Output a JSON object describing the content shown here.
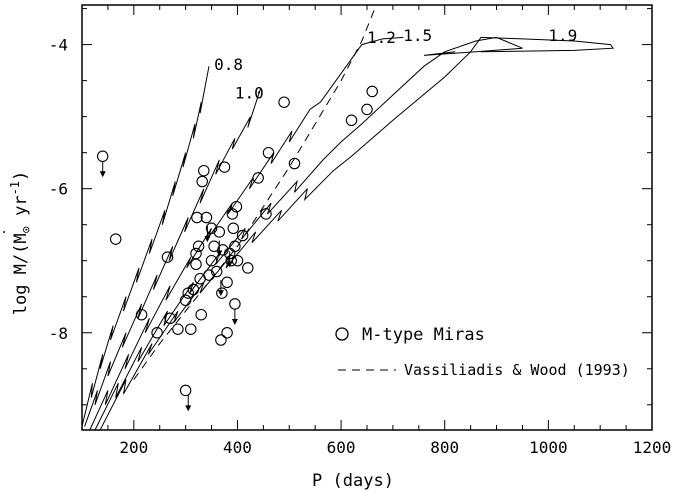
{
  "chart_data": {
    "type": "line",
    "xlabel": "P (days)",
    "ylabel_prefix": "log ",
    "ylabel_mdot": "M",
    "ylabel_mdot_dot": "˙",
    "ylabel_rest": "/(M",
    "ylabel_sun": "⊙",
    "ylabel_end": " yr",
    "ylabel_sup": "-1",
    "ylabel_close": ")",
    "xlim": [
      100,
      1200
    ],
    "ylim": [
      -9.35,
      -3.45
    ],
    "xticks": [
      "200",
      "400",
      "600",
      "800",
      "1000",
      "1200"
    ],
    "yticks": [
      "-4",
      "-6",
      "-8"
    ],
    "xtick_values": [
      200,
      400,
      600,
      800,
      1000,
      1200
    ],
    "ytick_values": [
      -4,
      -6,
      -8
    ],
    "grid": false,
    "legend": {
      "position": "lower-right",
      "entries": [
        {
          "label": "M-type Miras",
          "marker": "circle"
        },
        {
          "label": "Vassiliadis & Wood (1993)",
          "style": "dashed"
        }
      ]
    },
    "series": [
      {
        "name": "0.8",
        "x": [
          100,
          120,
          118,
          140,
          135,
          160,
          155,
          185,
          180,
          210,
          205,
          235,
          230,
          260,
          255,
          280,
          275,
          300,
          295,
          318,
          315,
          330,
          328,
          345
        ],
        "y": [
          -9.3,
          -8.7,
          -8.9,
          -8.3,
          -8.5,
          -7.9,
          -8.1,
          -7.5,
          -7.7,
          -7.1,
          -7.3,
          -6.7,
          -6.9,
          -6.3,
          -6.5,
          -5.9,
          -6.1,
          -5.5,
          -5.7,
          -5.1,
          -5.3,
          -4.8,
          -4.95,
          -4.3
        ]
      },
      {
        "name": "1.0",
        "x": [
          105,
          130,
          125,
          155,
          150,
          185,
          178,
          215,
          208,
          245,
          238,
          275,
          268,
          305,
          298,
          335,
          328,
          365,
          358,
          395,
          390,
          425,
          420,
          445
        ],
        "y": [
          -9.3,
          -8.8,
          -9.0,
          -8.4,
          -8.6,
          -8.0,
          -8.2,
          -7.6,
          -7.8,
          -7.2,
          -7.4,
          -6.8,
          -7.0,
          -6.4,
          -6.6,
          -6.0,
          -6.2,
          -5.6,
          -5.8,
          -5.3,
          -5.45,
          -5.0,
          -5.15,
          -4.6
        ]
      },
      {
        "name": "1.2",
        "x": [
          115,
          150,
          145,
          190,
          183,
          230,
          222,
          270,
          262,
          310,
          302,
          350,
          342,
          390,
          382,
          430,
          423,
          470,
          465,
          505,
          500,
          540,
          560,
          600,
          640,
          680,
          720
        ],
        "y": [
          -9.35,
          -8.8,
          -9.0,
          -8.3,
          -8.5,
          -7.8,
          -8.0,
          -7.35,
          -7.55,
          -6.95,
          -7.1,
          -6.55,
          -6.7,
          -6.2,
          -6.35,
          -5.85,
          -6.0,
          -5.5,
          -5.65,
          -5.2,
          -5.35,
          -4.9,
          -4.8,
          -4.4,
          -4.0,
          -3.92,
          -3.9
        ]
      },
      {
        "name": "1.5",
        "x": [
          125,
          170,
          165,
          215,
          208,
          265,
          258,
          315,
          308,
          365,
          358,
          415,
          408,
          465,
          458,
          515,
          510,
          565,
          600,
          640,
          700,
          760,
          800,
          860,
          900,
          950,
          860,
          760,
          820
        ],
        "y": [
          -9.35,
          -8.7,
          -8.9,
          -8.2,
          -8.4,
          -7.7,
          -7.9,
          -7.3,
          -7.45,
          -6.9,
          -7.05,
          -6.55,
          -6.7,
          -6.2,
          -6.35,
          -5.9,
          -6.05,
          -5.6,
          -5.35,
          -5.1,
          -4.7,
          -4.3,
          -4.1,
          -3.95,
          -3.9,
          -4.05,
          -4.1,
          -4.15,
          -4.1
        ]
      },
      {
        "name": "1.9",
        "x": [
          135,
          185,
          180,
          235,
          228,
          285,
          278,
          335,
          328,
          385,
          378,
          435,
          428,
          485,
          478,
          535,
          530,
          585,
          620,
          660,
          700,
          750,
          800,
          850,
          870,
          950,
          1050,
          1120,
          1125,
          1050,
          870
        ],
        "y": [
          -9.35,
          -8.65,
          -8.85,
          -8.15,
          -8.3,
          -7.7,
          -7.85,
          -7.3,
          -7.45,
          -6.95,
          -7.1,
          -6.6,
          -6.75,
          -6.3,
          -6.45,
          -6.0,
          -6.15,
          -5.75,
          -5.55,
          -5.3,
          -5.05,
          -4.75,
          -4.45,
          -4.1,
          -3.9,
          -3.92,
          -3.95,
          -4.0,
          -4.05,
          -4.08,
          -4.1
        ]
      },
      {
        "name": "Vassiliadis & Wood (1993)",
        "dashed": true,
        "x": [
          200,
          250,
          300,
          350,
          400,
          450,
          500,
          550,
          600,
          640,
          665
        ],
        "y": [
          -8.65,
          -8.15,
          -7.7,
          -7.25,
          -6.8,
          -6.25,
          -5.7,
          -5.1,
          -4.5,
          -3.95,
          -3.5
        ]
      }
    ],
    "track_labels": [
      "0.8",
      "1.0",
      "1.2",
      "1.5",
      "1.9"
    ],
    "track_label_pos": [
      [
        355,
        -4.35
      ],
      [
        395,
        -4.75
      ],
      [
        650,
        -3.98
      ],
      [
        720,
        -3.95
      ],
      [
        1000,
        -3.95
      ]
    ],
    "miras": {
      "x": [
        140,
        165,
        215,
        265,
        270,
        285,
        300,
        305,
        310,
        315,
        320,
        322,
        325,
        328,
        330,
        332,
        335,
        340,
        345,
        350,
        355,
        360,
        365,
        368,
        370,
        372,
        375,
        380,
        385,
        388,
        390,
        392,
        395,
        398,
        400,
        410,
        420,
        440,
        455,
        460,
        490,
        510,
        620,
        650,
        660,
        245,
        300,
        320,
        350,
        380,
        395
      ],
      "y": [
        -5.55,
        -6.7,
        -7.75,
        -6.95,
        -7.8,
        -7.95,
        -7.55,
        -7.45,
        -7.95,
        -7.4,
        -7.05,
        -6.4,
        -6.8,
        -7.25,
        -7.75,
        -5.9,
        -5.75,
        -6.4,
        -7.2,
        -6.55,
        -6.8,
        -7.15,
        -6.6,
        -8.1,
        -7.45,
        -6.85,
        -5.7,
        -7.3,
        -6.9,
        -7.0,
        -6.35,
        -6.55,
        -6.8,
        -6.25,
        -7.0,
        -6.65,
        -7.1,
        -5.85,
        -6.35,
        -5.5,
        -4.8,
        -5.65,
        -5.05,
        -4.9,
        -4.65,
        -8.0,
        -8.8,
        -6.9,
        -7.0,
        -8.0,
        -7.6
      ],
      "upper_limit_x": [
        140,
        305,
        395,
        342,
        365,
        385,
        368
      ],
      "upper_limit_y": [
        -5.55,
        -8.8,
        -7.6,
        -6.45,
        -6.65,
        -6.8,
        -7.2
      ]
    }
  }
}
